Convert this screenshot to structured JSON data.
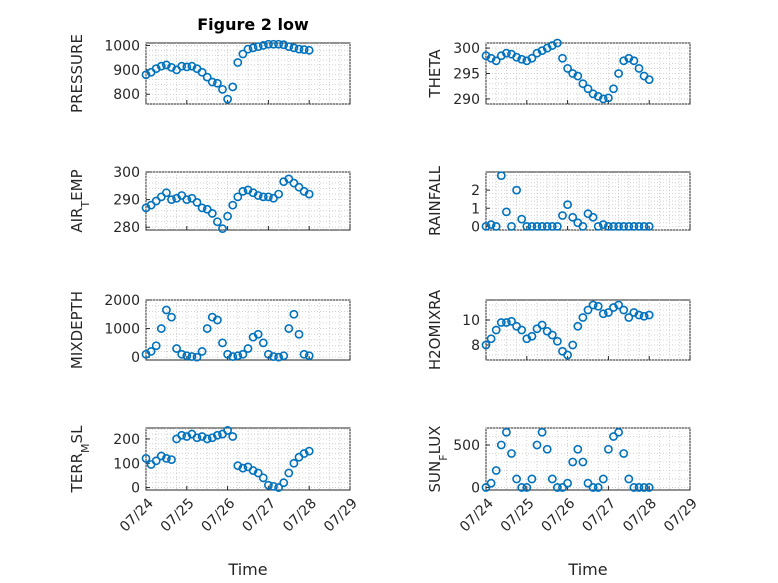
{
  "figure_title": "Figure 2 low",
  "x_label": "Time",
  "x_tick_labels": [
    "07/24",
    "07/25",
    "07/26",
    "07/27",
    "07/28",
    "07/29"
  ],
  "marker_color": "#0072BD",
  "chart_data": [
    {
      "type": "scatter",
      "ylabel": "PRESSURE",
      "ylim": [
        760,
        1010
      ],
      "yticks": [
        800,
        900,
        1000
      ],
      "grid": true,
      "x": [
        "07/24",
        "07/24 03:00",
        "07/24 06:00",
        "07/24 09:00",
        "07/24 12:00",
        "07/24 15:00",
        "07/24 18:00",
        "07/24 21:00",
        "07/25",
        "07/25 03:00",
        "07/25 06:00",
        "07/25 09:00",
        "07/25 12:00",
        "07/25 15:00",
        "07/25 18:00",
        "07/25 21:00",
        "07/26",
        "07/26 03:00",
        "07/26 06:00",
        "07/26 09:00",
        "07/26 12:00",
        "07/26 15:00",
        "07/26 18:00",
        "07/26 21:00",
        "07/27",
        "07/27 03:00",
        "07/27 06:00",
        "07/27 09:00",
        "07/27 12:00",
        "07/27 15:00",
        "07/27 18:00",
        "07/27 21:00",
        "07/28"
      ],
      "values": [
        880,
        890,
        905,
        915,
        920,
        910,
        900,
        915,
        912,
        915,
        905,
        890,
        870,
        850,
        845,
        820,
        780,
        830,
        930,
        965,
        985,
        990,
        995,
        1000,
        1005,
        1005,
        1005,
        1003,
        995,
        990,
        985,
        983,
        980
      ]
    },
    {
      "type": "scatter",
      "ylabel": "THETA",
      "ylim": [
        289,
        301
      ],
      "yticks": [
        290,
        295,
        300
      ],
      "grid": true,
      "x": [
        "07/24",
        "07/24 03:00",
        "07/24 06:00",
        "07/24 09:00",
        "07/24 12:00",
        "07/24 15:00",
        "07/24 18:00",
        "07/24 21:00",
        "07/25",
        "07/25 03:00",
        "07/25 06:00",
        "07/25 09:00",
        "07/25 12:00",
        "07/25 15:00",
        "07/25 18:00",
        "07/25 21:00",
        "07/26",
        "07/26 03:00",
        "07/26 06:00",
        "07/26 09:00",
        "07/26 12:00",
        "07/26 15:00",
        "07/26 18:00",
        "07/26 21:00",
        "07/27",
        "07/27 03:00",
        "07/27 06:00",
        "07/27 09:00",
        "07/27 12:00",
        "07/27 15:00",
        "07/27 18:00",
        "07/27 21:00",
        "07/28"
      ],
      "values": [
        298.5,
        298,
        297.5,
        298.5,
        299,
        298.8,
        298.2,
        297.8,
        297.5,
        298,
        299,
        299.5,
        300,
        300.5,
        301,
        298,
        296,
        295,
        294.5,
        293,
        292,
        291,
        290.5,
        290,
        290.2,
        292,
        295,
        297.5,
        298,
        297.5,
        296,
        294.5,
        293.8
      ]
    },
    {
      "type": "scatter",
      "ylabel": "AIR_TEMP",
      "ylim": [
        279,
        300
      ],
      "yticks": [
        280,
        290,
        300
      ],
      "grid": true,
      "x": [
        "07/24",
        "07/24 03:00",
        "07/24 06:00",
        "07/24 09:00",
        "07/24 12:00",
        "07/24 15:00",
        "07/24 18:00",
        "07/24 21:00",
        "07/25",
        "07/25 03:00",
        "07/25 06:00",
        "07/25 09:00",
        "07/25 12:00",
        "07/25 15:00",
        "07/25 18:00",
        "07/25 21:00",
        "07/26",
        "07/26 03:00",
        "07/26 06:00",
        "07/26 09:00",
        "07/26 12:00",
        "07/26 15:00",
        "07/26 18:00",
        "07/26 21:00",
        "07/27",
        "07/27 03:00",
        "07/27 06:00",
        "07/27 09:00",
        "07/27 12:00",
        "07/27 15:00",
        "07/27 18:00",
        "07/27 21:00",
        "07/28"
      ],
      "values": [
        287,
        288,
        289.5,
        291,
        292.5,
        290,
        290.5,
        291.5,
        290,
        290.5,
        289,
        287,
        286.5,
        285,
        282,
        279.5,
        284,
        288,
        291,
        293,
        293.5,
        292.5,
        291.5,
        291,
        291,
        290.5,
        292,
        296.5,
        297.5,
        296,
        294.5,
        293,
        292
      ]
    },
    {
      "type": "scatter",
      "ylabel": "RAINFALL",
      "ylim": [
        -0.2,
        3
      ],
      "yticks": [
        0,
        1,
        2
      ],
      "grid": true,
      "x": [
        "07/24",
        "07/24 03:00",
        "07/24 06:00",
        "07/24 09:00",
        "07/24 12:00",
        "07/24 15:00",
        "07/24 18:00",
        "07/24 21:00",
        "07/25",
        "07/25 03:00",
        "07/25 06:00",
        "07/25 09:00",
        "07/25 12:00",
        "07/25 15:00",
        "07/25 18:00",
        "07/25 21:00",
        "07/26",
        "07/26 03:00",
        "07/26 06:00",
        "07/26 09:00",
        "07/26 12:00",
        "07/26 15:00",
        "07/26 18:00",
        "07/26 21:00",
        "07/27",
        "07/27 03:00",
        "07/27 06:00",
        "07/27 09:00",
        "07/27 12:00",
        "07/27 15:00",
        "07/27 18:00",
        "07/27 21:00",
        "07/28"
      ],
      "values": [
        0,
        0.1,
        0,
        2.8,
        0.8,
        0,
        2,
        0.4,
        0,
        0,
        0,
        0,
        0,
        0,
        0,
        0.6,
        1.2,
        0.5,
        0.2,
        0,
        0.7,
        0.5,
        0,
        0.1,
        0,
        0,
        0,
        0,
        0,
        0,
        0,
        0,
        0
      ]
    },
    {
      "type": "scatter",
      "ylabel": "MIXDEPTH",
      "ylim": [
        -100,
        2000
      ],
      "yticks": [
        0,
        1000,
        2000
      ],
      "grid": true,
      "x": [
        "07/24",
        "07/24 03:00",
        "07/24 06:00",
        "07/24 09:00",
        "07/24 12:00",
        "07/24 15:00",
        "07/24 18:00",
        "07/24 21:00",
        "07/25",
        "07/25 03:00",
        "07/25 06:00",
        "07/25 09:00",
        "07/25 12:00",
        "07/25 15:00",
        "07/25 18:00",
        "07/25 21:00",
        "07/26",
        "07/26 03:00",
        "07/26 06:00",
        "07/26 09:00",
        "07/26 12:00",
        "07/26 15:00",
        "07/26 18:00",
        "07/26 21:00",
        "07/27",
        "07/27 03:00",
        "07/27 06:00",
        "07/27 09:00",
        "07/27 12:00",
        "07/27 15:00",
        "07/27 18:00",
        "07/27 21:00",
        "07/28"
      ],
      "values": [
        100,
        200,
        400,
        1000,
        1650,
        1400,
        300,
        100,
        50,
        20,
        0,
        200,
        1000,
        1400,
        1300,
        500,
        100,
        20,
        50,
        100,
        300,
        700,
        800,
        500,
        100,
        20,
        0,
        50,
        1000,
        1500,
        800,
        100,
        50
      ]
    },
    {
      "type": "scatter",
      "ylabel": "H2OMIXRA",
      "ylim": [
        6.8,
        11.6
      ],
      "yticks": [
        8,
        10
      ],
      "grid": true,
      "x": [
        "07/24",
        "07/24 03:00",
        "07/24 06:00",
        "07/24 09:00",
        "07/24 12:00",
        "07/24 15:00",
        "07/24 18:00",
        "07/24 21:00",
        "07/25",
        "07/25 03:00",
        "07/25 06:00",
        "07/25 09:00",
        "07/25 12:00",
        "07/25 15:00",
        "07/25 18:00",
        "07/25 21:00",
        "07/26",
        "07/26 03:00",
        "07/26 06:00",
        "07/26 09:00",
        "07/26 12:00",
        "07/26 15:00",
        "07/26 18:00",
        "07/26 21:00",
        "07/27",
        "07/27 03:00",
        "07/27 06:00",
        "07/27 09:00",
        "07/27 12:00",
        "07/27 15:00",
        "07/27 18:00",
        "07/27 21:00",
        "07/28"
      ],
      "values": [
        8,
        8.5,
        9.2,
        9.8,
        9.8,
        9.9,
        9.5,
        9.2,
        8.5,
        8.7,
        9.3,
        9.6,
        9.1,
        8.8,
        8.3,
        7.5,
        7.2,
        8,
        9.5,
        10.2,
        10.8,
        11.2,
        11.1,
        10.5,
        10.6,
        11,
        11.2,
        10.8,
        10.2,
        10.6,
        10.4,
        10.3,
        10.4
      ]
    },
    {
      "type": "scatter",
      "ylabel": "TERR_MSL",
      "ylim": [
        -10,
        245
      ],
      "yticks": [
        0,
        100,
        200
      ],
      "grid": true,
      "x": [
        "07/24",
        "07/24 03:00",
        "07/24 06:00",
        "07/24 09:00",
        "07/24 12:00",
        "07/24 15:00",
        "07/24 18:00",
        "07/24 21:00",
        "07/25",
        "07/25 03:00",
        "07/25 06:00",
        "07/25 09:00",
        "07/25 12:00",
        "07/25 15:00",
        "07/25 18:00",
        "07/25 21:00",
        "07/26",
        "07/26 03:00",
        "07/26 06:00",
        "07/26 09:00",
        "07/26 12:00",
        "07/26 15:00",
        "07/26 18:00",
        "07/26 21:00",
        "07/27",
        "07/27 03:00",
        "07/27 06:00",
        "07/27 09:00",
        "07/27 12:00",
        "07/27 15:00",
        "07/27 18:00",
        "07/27 21:00",
        "07/28"
      ],
      "values": [
        120,
        95,
        110,
        130,
        120,
        115,
        200,
        215,
        210,
        220,
        205,
        210,
        200,
        205,
        215,
        220,
        235,
        210,
        90,
        80,
        85,
        70,
        60,
        40,
        10,
        5,
        0,
        20,
        60,
        100,
        125,
        140,
        150
      ]
    },
    {
      "type": "scatter",
      "ylabel": "SUN_FLUX",
      "ylim": [
        -30,
        700
      ],
      "yticks": [
        0,
        500
      ],
      "grid": true,
      "x": [
        "07/24",
        "07/24 03:00",
        "07/24 06:00",
        "07/24 09:00",
        "07/24 12:00",
        "07/24 15:00",
        "07/24 18:00",
        "07/24 21:00",
        "07/25",
        "07/25 03:00",
        "07/25 06:00",
        "07/25 09:00",
        "07/25 12:00",
        "07/25 15:00",
        "07/25 18:00",
        "07/25 21:00",
        "07/26",
        "07/26 03:00",
        "07/26 06:00",
        "07/26 09:00",
        "07/26 12:00",
        "07/26 15:00",
        "07/26 18:00",
        "07/26 21:00",
        "07/27",
        "07/27 03:00",
        "07/27 06:00",
        "07/27 09:00",
        "07/27 12:00",
        "07/27 15:00",
        "07/27 18:00",
        "07/27 21:00",
        "07/28"
      ],
      "values": [
        0,
        50,
        200,
        500,
        650,
        400,
        100,
        0,
        0,
        100,
        500,
        650,
        450,
        100,
        0,
        0,
        50,
        300,
        450,
        300,
        50,
        0,
        0,
        100,
        450,
        600,
        650,
        400,
        100,
        0,
        0,
        0,
        0
      ]
    }
  ]
}
